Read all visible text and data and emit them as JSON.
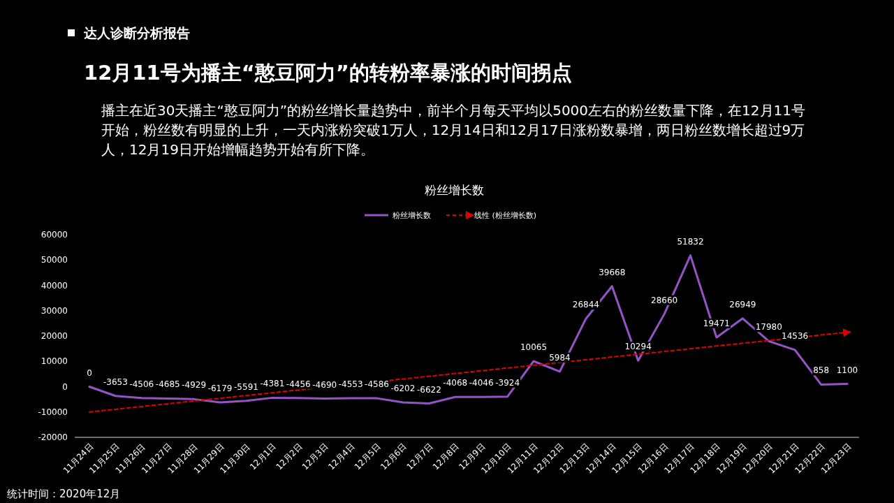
{
  "chart_data": {
    "type": "line",
    "title": "12月11号为播主“憨豆阿力”的转粉率暴涨的时间拐点",
    "subtitle": "播主在近30天播主“憨豆阿力”的粉丝增长量趋势中，前半个月每天平均以5000左右的粉丝数量下降，在12月11号开始，粉丝数有明显的上升，一天内涨粉突破1万人，12月14日和12月17日涨粉数暴增，两日粉丝数增长超过9万人，12月19日开始增幅趋势开始有所下降。",
    "annotations": [
      "达人诊断分析报告",
      "粉丝增长数",
      "统计时间：2020年12月"
    ],
    "categories": [
      "11月24日",
      "11月25日",
      "11月26日",
      "11月27日",
      "11月28日",
      "11月29日",
      "11月30日",
      "12月1日",
      "12月2日",
      "12月3日",
      "12月4日",
      "12月5日",
      "12月6日",
      "12月7日",
      "12月8日",
      "12月9日",
      "12月10日",
      "12月11日",
      "12月12日",
      "12月13日",
      "12月14日",
      "12月15日",
      "12月16日",
      "12月17日",
      "12月18日",
      "12月19日",
      "12月20日",
      "12月21日",
      "12月22日",
      "12月23日"
    ],
    "series": [
      {
        "name": "粉丝增长数",
        "color": "#9355c5",
        "values": [
          0,
          -3653,
          -4506,
          -4685,
          -4929,
          -6179,
          -5591,
          -4381,
          -4456,
          -4690,
          -4553,
          -4586,
          -6202,
          -6622,
          -4068,
          -4046,
          -3924,
          10065,
          5984,
          26844,
          39668,
          10294,
          28660,
          51832,
          19471,
          26949,
          17980,
          14536,
          858,
          1100
        ],
        "value_labels": [
          "0",
          "-3653",
          "-4506",
          "-4685",
          "-4929",
          "-6179",
          "-5591",
          "-4381",
          "-4456",
          "-4690",
          "-4553",
          "-4586",
          "-6202",
          "-6622",
          "-4068",
          "-4046",
          "-3924",
          "10065",
          "5984",
          "26844",
          "39668",
          "10294",
          "28660",
          "51832",
          "19471",
          "26949",
          "17980",
          "14536",
          "858",
          "1100"
        ]
      },
      {
        "name": "线性 (粉丝增长数)",
        "color": "#e00000",
        "line_style": "dashed",
        "x": [
          "11月24日",
          "12月23日"
        ],
        "values": [
          -10000,
          21500
        ]
      }
    ],
    "ylim": [
      -20000,
      60000
    ],
    "yticks": [
      -20000,
      -10000,
      0,
      10000,
      20000,
      30000,
      40000,
      50000,
      60000
    ],
    "legend": "top",
    "grid": false
  }
}
